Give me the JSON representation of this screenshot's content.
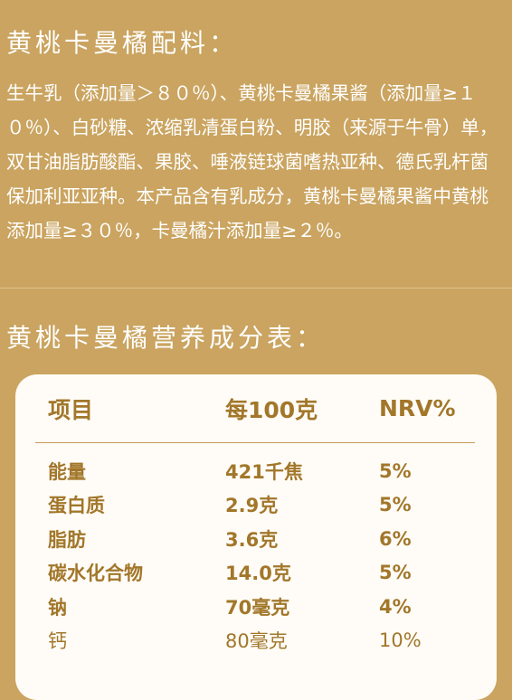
{
  "ingredients_section": {
    "title": "黄桃卡曼橘配料：",
    "text": "生牛乳（添加量＞８０％）、黄桃卡曼橘果酱（添加量≥１０％）、白砂糖、浓缩乳清蛋白粉、明胶（来源于牛骨）单，双甘油脂肪酸酯、果胶、唾液链球菌嗜热亚种、德氏乳杆菌保加利亚亚种。本产品含有乳成分，黄桃卡曼橘果酱中黄桃添加量≥３０％，卡曼橘汁添加量≥２％。"
  },
  "nutrition_section": {
    "title": "黄桃卡曼橘营养成分表：",
    "headers": [
      "项目",
      "每100克",
      "NRV%"
    ],
    "rows": [
      {
        "item": "能量",
        "per100g": "421千焦",
        "nrv": "5%"
      },
      {
        "item": "蛋白质",
        "per100g": "2.9克",
        "nrv": "5%"
      },
      {
        "item": "脂肪",
        "per100g": "3.6克",
        "nrv": "6%"
      },
      {
        "item": "碳水化合物",
        "per100g": "14.0克",
        "nrv": "5%"
      },
      {
        "item": "钠",
        "per100g": "70毫克",
        "nrv": "4%"
      },
      {
        "item": "钙",
        "per100g": "80毫克",
        "nrv": "10%"
      }
    ]
  },
  "colors": {
    "background": "#caa460",
    "card": "#fffcf7",
    "table_text": "#a2772a"
  }
}
